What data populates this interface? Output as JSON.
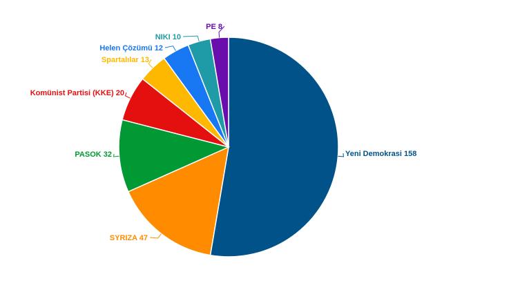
{
  "chart_data": {
    "type": "pie",
    "title": "",
    "start_category": "Yeni Demokrasi",
    "direction": "clockwise",
    "slices": [
      {
        "label": "Yeni Demokrasi",
        "value": 158,
        "color": "#005288",
        "text": "Yeni Demokrasi 158"
      },
      {
        "label": "SYRIZA",
        "value": 47,
        "color": "#FF8C00",
        "text": "SYRIZA 47"
      },
      {
        "label": "PASOK",
        "value": 32,
        "color": "#009933",
        "text": "PASOK 32"
      },
      {
        "label": "Komünist Partisi (KKE)",
        "value": 20,
        "color": "#E3100F",
        "text": "Komünist Partisi (KKE) 20"
      },
      {
        "label": "Spartalılar",
        "value": 13,
        "color": "#FFB800",
        "text": "Spartalılar 13"
      },
      {
        "label": "Helen Çözümü",
        "value": 12,
        "color": "#1877F2",
        "text": "Helen Çözümü 12"
      },
      {
        "label": "NIKI",
        "value": 10,
        "color": "#1F9BA7",
        "text": "NIKI 10"
      },
      {
        "label": "PE",
        "value": 8,
        "color": "#6A0DAD",
        "text": "PE 8"
      }
    ]
  }
}
